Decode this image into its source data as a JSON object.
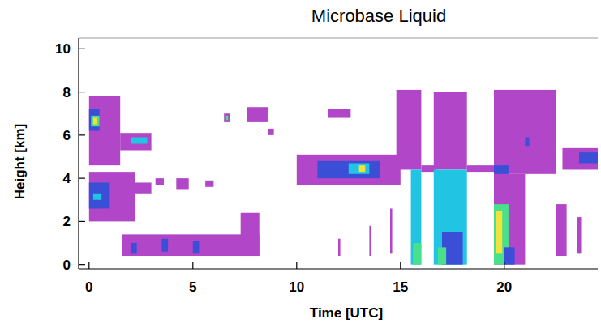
{
  "chart_data": {
    "type": "heatmap",
    "title": "Microbase Liquid",
    "x_label": "Time [UTC]",
    "y_label": "Height [km]",
    "xlim": [
      -0.5,
      24.5
    ],
    "ylim": [
      -0.2,
      10.5
    ],
    "xticks": [
      0,
      5,
      10,
      15,
      20
    ],
    "yticks": [
      0,
      2,
      4,
      6,
      8,
      10
    ],
    "colors": [
      "#b246c8",
      "#3a4fd6",
      "#22c4e4",
      "#48e08a",
      "#f2e23c"
    ],
    "cells": [
      {
        "x": [
          0,
          1.5
        ],
        "y": [
          4.6,
          7.8
        ],
        "value": 0
      },
      {
        "x": [
          1.5,
          3
        ],
        "y": [
          5.3,
          6.1
        ],
        "value": 0
      },
      {
        "x": [
          0,
          0.5
        ],
        "y": [
          6.2,
          7.2
        ],
        "value": 1
      },
      {
        "x": [
          0.1,
          0.5
        ],
        "y": [
          6.4,
          6.9
        ],
        "value": 3
      },
      {
        "x": [
          0.2,
          0.4
        ],
        "y": [
          6.5,
          6.8
        ],
        "value": 4
      },
      {
        "x": [
          2,
          2.8
        ],
        "y": [
          5.6,
          5.9
        ],
        "value": 2
      },
      {
        "x": [
          0,
          2.2
        ],
        "y": [
          2.0,
          4.3
        ],
        "value": 0
      },
      {
        "x": [
          0,
          1
        ],
        "y": [
          2.6,
          3.8
        ],
        "value": 1
      },
      {
        "x": [
          0.2,
          0.6
        ],
        "y": [
          3.0,
          3.3
        ],
        "value": 2
      },
      {
        "x": [
          2,
          3
        ],
        "y": [
          3.3,
          3.8
        ],
        "value": 0
      },
      {
        "x": [
          1.6,
          8.2
        ],
        "y": [
          0.4,
          1.4
        ],
        "value": 0
      },
      {
        "x": [
          2,
          2.3
        ],
        "y": [
          0.5,
          1.0
        ],
        "value": 1
      },
      {
        "x": [
          3.5,
          3.8
        ],
        "y": [
          0.6,
          1.2
        ],
        "value": 1
      },
      {
        "x": [
          5,
          5.3
        ],
        "y": [
          0.5,
          1.1
        ],
        "value": 1
      },
      {
        "x": [
          7.3,
          8.2
        ],
        "y": [
          0.4,
          2.4
        ],
        "value": 0
      },
      {
        "x": [
          3.2,
          3.6
        ],
        "y": [
          3.7,
          4.0
        ],
        "value": 0
      },
      {
        "x": [
          4.2,
          4.8
        ],
        "y": [
          3.5,
          4.0
        ],
        "value": 0
      },
      {
        "x": [
          5.6,
          6
        ],
        "y": [
          3.6,
          3.9
        ],
        "value": 0
      },
      {
        "x": [
          6.5,
          6.8
        ],
        "y": [
          6.6,
          7.0
        ],
        "value": 0
      },
      {
        "x": [
          6.6,
          6.7
        ],
        "y": [
          6.7,
          6.9
        ],
        "value": 3
      },
      {
        "x": [
          7.6,
          8.6
        ],
        "y": [
          6.6,
          7.3
        ],
        "value": 0
      },
      {
        "x": [
          8.6,
          8.9
        ],
        "y": [
          6.0,
          6.3
        ],
        "value": 0
      },
      {
        "x": [
          10,
          15
        ],
        "y": [
          3.7,
          5.1
        ],
        "value": 0
      },
      {
        "x": [
          11,
          14
        ],
        "y": [
          4.0,
          4.8
        ],
        "value": 1
      },
      {
        "x": [
          12.5,
          13.5
        ],
        "y": [
          4.2,
          4.7
        ],
        "value": 2
      },
      {
        "x": [
          13,
          13.3
        ],
        "y": [
          4.3,
          4.6
        ],
        "value": 4
      },
      {
        "x": [
          11.5,
          12.6
        ],
        "y": [
          6.8,
          7.2
        ],
        "value": 0
      },
      {
        "x": [
          12,
          12.1
        ],
        "y": [
          0.4,
          1.2
        ],
        "value": 0
      },
      {
        "x": [
          13.5,
          13.6
        ],
        "y": [
          0.4,
          1.8
        ],
        "value": 0
      },
      {
        "x": [
          14.5,
          14.6
        ],
        "y": [
          0.5,
          2.6
        ],
        "value": 0
      },
      {
        "x": [
          14.8,
          16
        ],
        "y": [
          4.4,
          8.1
        ],
        "value": 0
      },
      {
        "x": [
          15.5,
          16
        ],
        "y": [
          0,
          4.4
        ],
        "value": 2
      },
      {
        "x": [
          15.6,
          16
        ],
        "y": [
          0,
          1.0
        ],
        "value": 3
      },
      {
        "x": [
          16,
          16.7
        ],
        "y": [
          4.3,
          4.6
        ],
        "value": 0
      },
      {
        "x": [
          16.6,
          18.2
        ],
        "y": [
          4.4,
          8.0
        ],
        "value": 0
      },
      {
        "x": [
          16.6,
          18.2
        ],
        "y": [
          0,
          4.4
        ],
        "value": 2
      },
      {
        "x": [
          17,
          18
        ],
        "y": [
          0,
          1.5
        ],
        "value": 1
      },
      {
        "x": [
          16.8,
          17.2
        ],
        "y": [
          0,
          0.8
        ],
        "value": 3
      },
      {
        "x": [
          18.2,
          19.5
        ],
        "y": [
          4.3,
          4.6
        ],
        "value": 0
      },
      {
        "x": [
          19.5,
          22.5
        ],
        "y": [
          4.2,
          8.1
        ],
        "value": 0
      },
      {
        "x": [
          19.5,
          21
        ],
        "y": [
          0,
          4.2
        ],
        "value": 0
      },
      {
        "x": [
          19.5,
          20.2
        ],
        "y": [
          0,
          2.8
        ],
        "value": 3
      },
      {
        "x": [
          19.6,
          19.9
        ],
        "y": [
          0.5,
          2.5
        ],
        "value": 4
      },
      {
        "x": [
          20,
          20.5
        ],
        "y": [
          0,
          0.8
        ],
        "value": 1
      },
      {
        "x": [
          19.5,
          20.2
        ],
        "y": [
          4.2,
          4.6
        ],
        "value": 1
      },
      {
        "x": [
          20.5,
          21.3
        ],
        "y": [
          6.2,
          7.2
        ],
        "value": 0
      },
      {
        "x": [
          21,
          21.2
        ],
        "y": [
          5.5,
          5.9
        ],
        "value": 1
      },
      {
        "x": [
          22.8,
          24.5
        ],
        "y": [
          4.4,
          5.4
        ],
        "value": 0
      },
      {
        "x": [
          23.6,
          24.5
        ],
        "y": [
          4.7,
          5.2
        ],
        "value": 1
      },
      {
        "x": [
          22.5,
          23
        ],
        "y": [
          0.4,
          2.8
        ],
        "value": 0
      },
      {
        "x": [
          23.5,
          23.7
        ],
        "y": [
          0.5,
          2.2
        ],
        "value": 0
      }
    ]
  }
}
